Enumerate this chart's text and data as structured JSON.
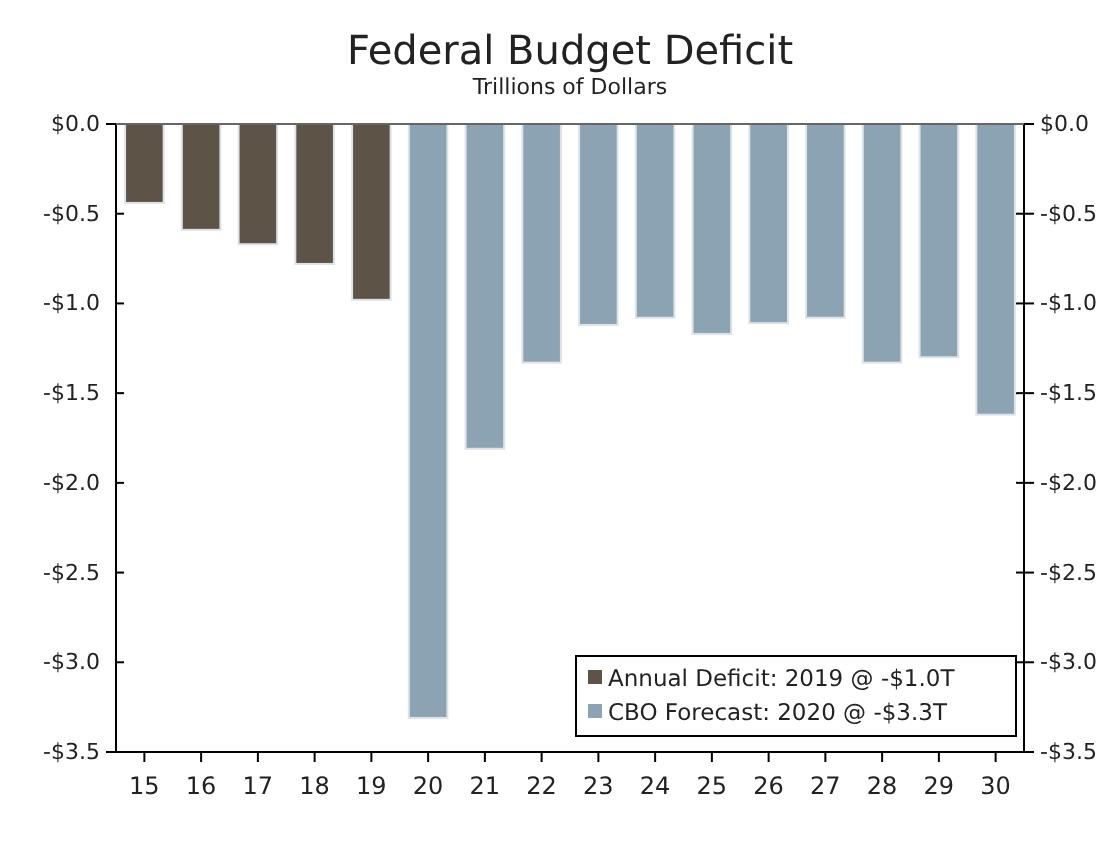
{
  "chart_data": {
    "type": "bar",
    "title": "Federal Budget Deficit",
    "subtitle": "Trillions of Dollars",
    "categories": [
      "15",
      "16",
      "17",
      "18",
      "19",
      "20",
      "21",
      "22",
      "23",
      "24",
      "25",
      "26",
      "27",
      "28",
      "29",
      "30"
    ],
    "series": [
      {
        "name": "Annual Deficit: 2019 @ -$1.0T",
        "color": "#5e5347",
        "values": [
          -0.44,
          -0.59,
          -0.67,
          -0.78,
          -0.98,
          null,
          null,
          null,
          null,
          null,
          null,
          null,
          null,
          null,
          null,
          null
        ]
      },
      {
        "name": "CBO Forecast: 2020 @ -$3.3T",
        "color": "#8ba3b3",
        "values": [
          null,
          null,
          null,
          null,
          null,
          -3.31,
          -1.81,
          -1.33,
          -1.12,
          -1.08,
          -1.17,
          -1.11,
          -1.08,
          -1.33,
          -1.3,
          -1.62
        ]
      }
    ],
    "ylim": [
      -3.5,
      0
    ],
    "yticks": [
      {
        "value": 0,
        "label": "$0.0"
      },
      {
        "value": -0.5,
        "label": "-$0.5"
      },
      {
        "value": -1,
        "label": "-$1.0"
      },
      {
        "value": -1.5,
        "label": "-$1.5"
      },
      {
        "value": -2,
        "label": "-$2.0"
      },
      {
        "value": -2.5,
        "label": "-$2.5"
      },
      {
        "value": -3,
        "label": "-$3.0"
      },
      {
        "value": -3.5,
        "label": "-$3.5"
      }
    ],
    "y2lim": [
      -3.5,
      0
    ],
    "y2ticks": [
      {
        "value": 0,
        "label": "$0.0"
      },
      {
        "value": -0.5,
        "label": "-$0.5"
      },
      {
        "value": -1,
        "label": "-$1.0"
      },
      {
        "value": -1.5,
        "label": "-$1.5"
      },
      {
        "value": -2,
        "label": "-$2.0"
      },
      {
        "value": -2.5,
        "label": "-$2.5"
      },
      {
        "value": -3,
        "label": "-$3.0"
      },
      {
        "value": -3.5,
        "label": "-$3.5"
      }
    ],
    "grid": false,
    "legend": "bottom right"
  }
}
